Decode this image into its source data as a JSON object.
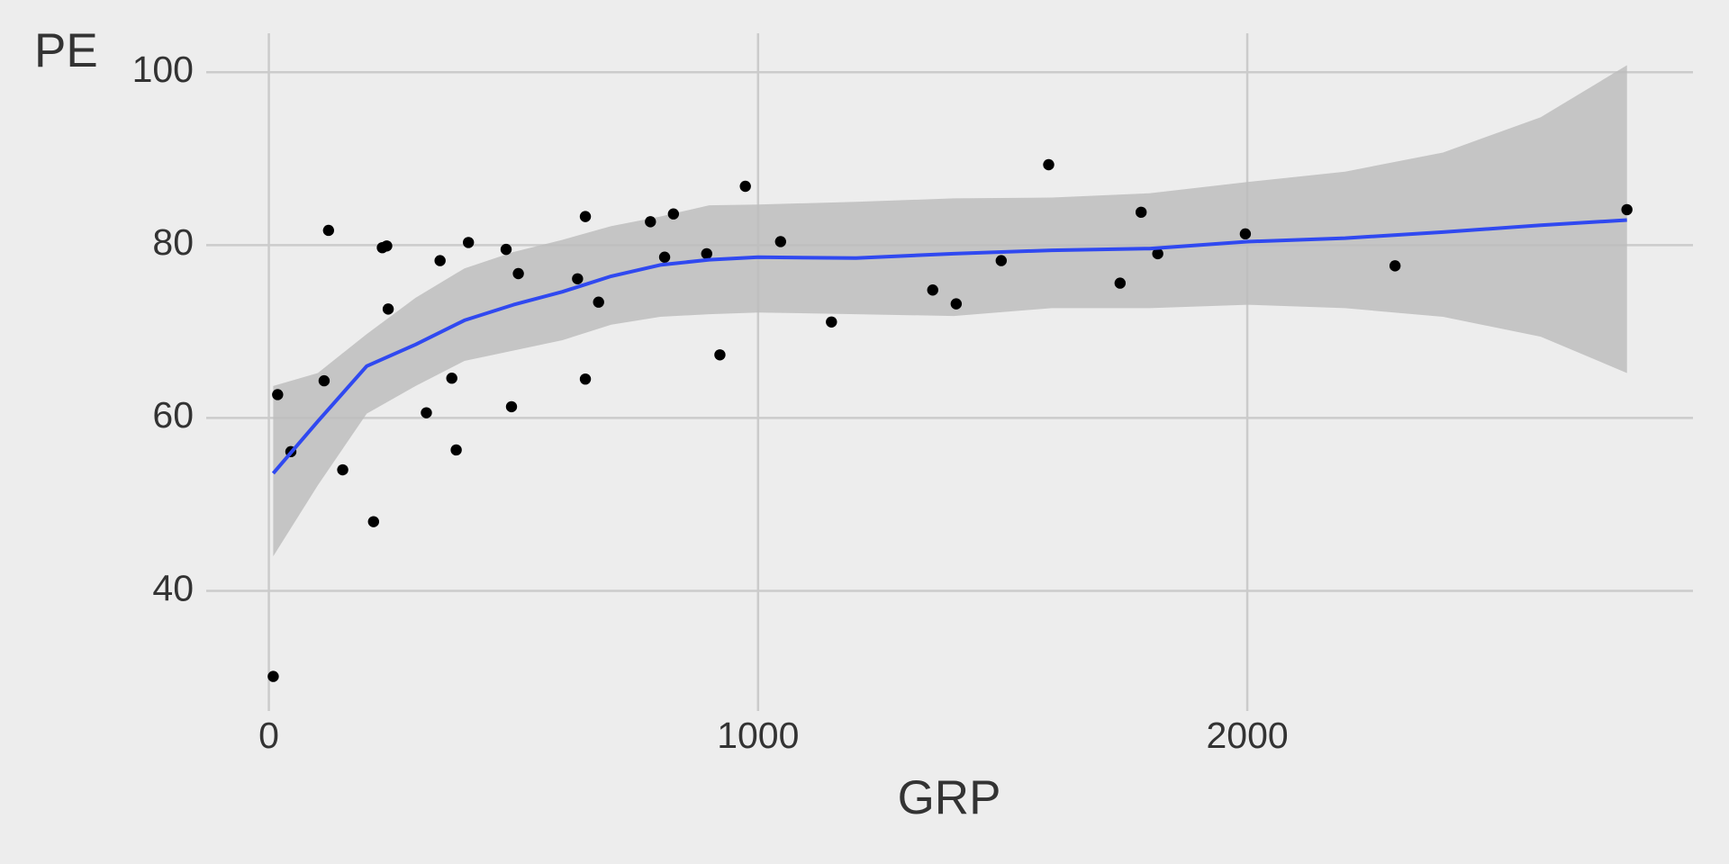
{
  "chart_data": {
    "type": "scatter_smooth",
    "x_label": "GRP",
    "y_label": "PE",
    "xlim": [
      -128,
      2911
    ],
    "ylim": [
      26.1,
      104.5
    ],
    "xticks": [
      0,
      1000,
      2000
    ],
    "yticks": [
      40,
      60,
      80,
      100
    ],
    "grid": true,
    "points": {
      "color": "#000000",
      "x": [
        9,
        18,
        45,
        113,
        122,
        151,
        214,
        232,
        241,
        244,
        322,
        350,
        374,
        383,
        408,
        485,
        496,
        510,
        631,
        647,
        647,
        674,
        780,
        809,
        827,
        895,
        922,
        974,
        1046,
        1150,
        1357,
        1405,
        1497,
        1594,
        1740,
        1783,
        1817,
        1996,
        2302,
        2776
      ],
      "y": [
        30.1,
        62.7,
        56.1,
        64.3,
        81.7,
        54.0,
        48.0,
        79.7,
        79.9,
        72.6,
        60.6,
        78.2,
        64.6,
        56.3,
        80.3,
        79.5,
        61.3,
        76.7,
        76.1,
        83.3,
        64.5,
        73.4,
        82.7,
        78.6,
        83.6,
        79.0,
        67.3,
        86.8,
        80.4,
        71.1,
        74.8,
        73.2,
        78.2,
        89.3,
        75.6,
        83.8,
        79.0,
        81.3,
        77.6,
        84.1
      ]
    },
    "smooth": {
      "color": "#3049f0",
      "band_color": "#bdbdbd",
      "x": [
        9,
        100,
        200,
        300,
        400,
        500,
        600,
        700,
        800,
        900,
        1000,
        1200,
        1400,
        1600,
        1800,
        2000,
        2200,
        2400,
        2600,
        2776
      ],
      "y": [
        53.6,
        59.6,
        66.0,
        68.5,
        71.3,
        73.1,
        74.6,
        76.4,
        77.7,
        78.3,
        78.6,
        78.5,
        79.0,
        79.4,
        79.6,
        80.4,
        80.8,
        81.5,
        82.3,
        82.9
      ],
      "ymin": [
        44.0,
        52.2,
        60.5,
        63.7,
        66.6,
        67.8,
        69.0,
        70.8,
        71.7,
        72.0,
        72.2,
        72.0,
        71.8,
        72.7,
        72.7,
        73.1,
        72.7,
        71.7,
        69.4,
        65.2
      ],
      "ymax": [
        63.7,
        65.2,
        69.7,
        73.9,
        77.3,
        79.2,
        80.6,
        82.2,
        83.3,
        84.6,
        84.7,
        85.0,
        85.4,
        85.5,
        86.0,
        87.3,
        88.5,
        90.7,
        94.8,
        100.8
      ]
    }
  }
}
